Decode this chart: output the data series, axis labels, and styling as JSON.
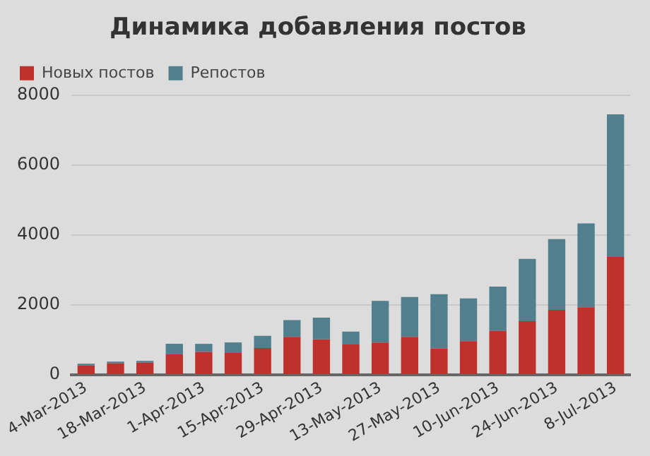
{
  "chart_data": {
    "type": "bar",
    "title": "Динамика добавления постов",
    "categories": [
      "4-Mar-2013",
      null,
      "18-Mar-2013",
      null,
      "1-Apr-2013",
      null,
      "15-Apr-2013",
      null,
      "29-Apr-2013",
      null,
      "13-May-2013",
      null,
      "27-May-2013",
      null,
      "10-Jun-2013",
      null,
      "24-Jun-2013",
      null,
      "8-Jul-2013"
    ],
    "series": [
      {
        "name": "Новых постов",
        "color": "#c0302c",
        "values": [
          260,
          320,
          340,
          580,
          650,
          620,
          760,
          1080,
          1010,
          860,
          920,
          1080,
          750,
          960,
          1250,
          1530,
          1850,
          1930,
          3370
        ]
      },
      {
        "name": "Репостов",
        "color": "#517f8e",
        "values": [
          50,
          50,
          50,
          300,
          230,
          300,
          350,
          480,
          620,
          370,
          1190,
          1140,
          1550,
          1220,
          1270,
          1780,
          2030,
          2400,
          4080
        ]
      }
    ],
    "stacked": true,
    "ylim": [
      0,
      8000
    ],
    "yticks": [
      0,
      2000,
      4000,
      6000,
      8000
    ],
    "grid": "y",
    "legend": "top left"
  }
}
